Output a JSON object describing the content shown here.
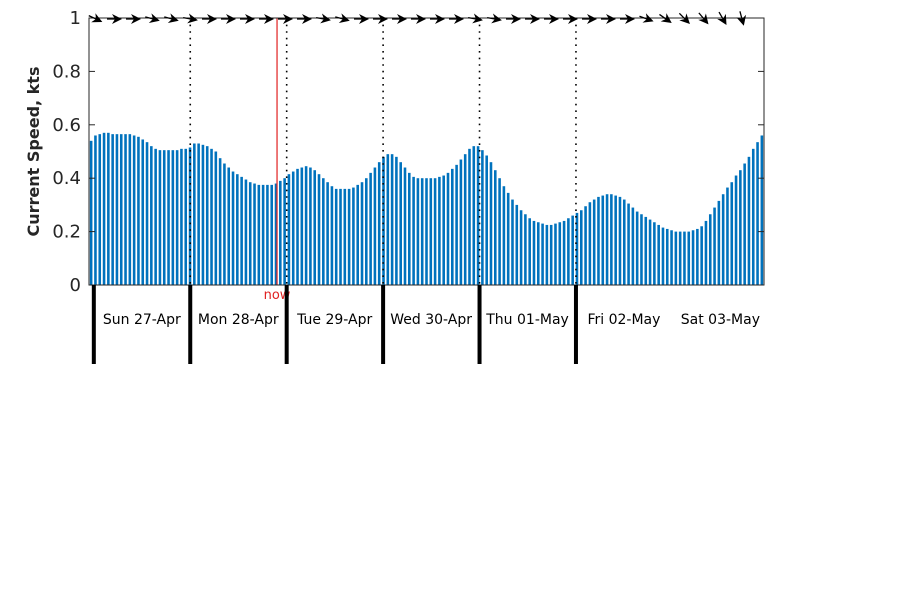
{
  "chart_data": {
    "type": "bar",
    "ylabel": "Current Speed, kts",
    "ylim": [
      0,
      1
    ],
    "yticks": [
      "0",
      "0.2",
      "0.4",
      "0.6",
      "0.8",
      "1"
    ],
    "day_labels": [
      "Sun 27-Apr",
      "Mon 28-Apr",
      "Tue 29-Apr",
      "Wed 30-Apr",
      "Thu 01-May",
      "Fri 02-May",
      "Sat 03-May"
    ],
    "x_start_day": -0.05,
    "x_end_day": 6.95,
    "now_day": 1.9,
    "now_label": "now",
    "grid": "dotted vertical lines at day boundaries",
    "series": [
      {
        "values": [
          0.54,
          0.56,
          0.565,
          0.57,
          0.57,
          0.565,
          0.565,
          0.565,
          0.565,
          0.565,
          0.56,
          0.555,
          0.545,
          0.535,
          0.52,
          0.51,
          0.505,
          0.505,
          0.505,
          0.505,
          0.505,
          0.51,
          0.51,
          0.515,
          0.53,
          0.53,
          0.525,
          0.52,
          0.51,
          0.5,
          0.475,
          0.455,
          0.44,
          0.425,
          0.415,
          0.405,
          0.395,
          0.385,
          0.38,
          0.375,
          0.375,
          0.375,
          0.375,
          0.38,
          0.39,
          0.4,
          0.415,
          0.425,
          0.435,
          0.44,
          0.445,
          0.44,
          0.43,
          0.415,
          0.4,
          0.385,
          0.37,
          0.36,
          0.36,
          0.36,
          0.36,
          0.365,
          0.375,
          0.385,
          0.4,
          0.42,
          0.44,
          0.46,
          0.48,
          0.49,
          0.49,
          0.48,
          0.46,
          0.44,
          0.42,
          0.405,
          0.4,
          0.4,
          0.4,
          0.4,
          0.4,
          0.405,
          0.41,
          0.42,
          0.435,
          0.45,
          0.47,
          0.49,
          0.51,
          0.52,
          0.52,
          0.505,
          0.485,
          0.46,
          0.43,
          0.4,
          0.37,
          0.345,
          0.32,
          0.3,
          0.28,
          0.265,
          0.25,
          0.24,
          0.235,
          0.23,
          0.225,
          0.225,
          0.23,
          0.235,
          0.24,
          0.25,
          0.26,
          0.27,
          0.28,
          0.295,
          0.31,
          0.32,
          0.33,
          0.335,
          0.34,
          0.34,
          0.335,
          0.33,
          0.32,
          0.305,
          0.29,
          0.275,
          0.265,
          0.255,
          0.245,
          0.235,
          0.225,
          0.215,
          0.21,
          0.205,
          0.2,
          0.2,
          0.2,
          0.2,
          0.205,
          0.21,
          0.22,
          0.24,
          0.265,
          0.29,
          0.315,
          0.34,
          0.365,
          0.385,
          0.41,
          0.43,
          0.455,
          0.48,
          0.51,
          0.535,
          0.56
        ]
      }
    ],
    "direction_arrows": {
      "type": "current direction",
      "angles_deg": [
        25,
        0,
        0,
        15,
        15,
        10,
        0,
        0,
        0,
        0,
        0,
        0,
        10,
        15,
        0,
        0,
        0,
        0,
        0,
        0,
        10,
        10,
        0,
        0,
        0,
        0,
        0,
        0,
        0,
        20,
        35,
        45,
        50,
        60,
        75
      ]
    }
  },
  "colors": {
    "bar": "#0072BD",
    "now": "#E02020",
    "axis": "#262626",
    "grid": "#000000"
  }
}
